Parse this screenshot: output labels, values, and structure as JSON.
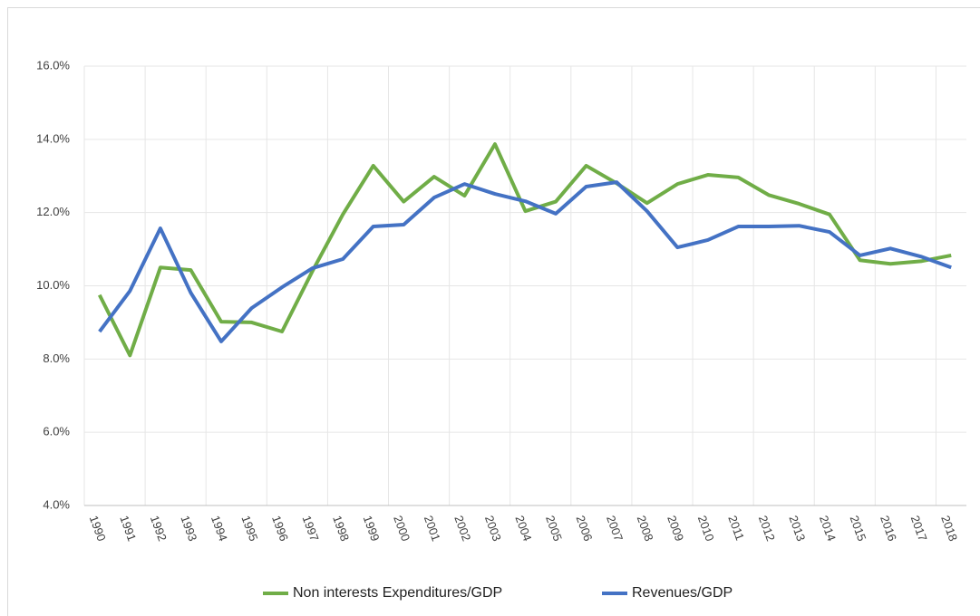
{
  "chart_data": {
    "type": "line",
    "categories": [
      "1990",
      "1991",
      "1992",
      "1993",
      "1994",
      "1995",
      "1996",
      "1997",
      "1998",
      "1999",
      "2000",
      "2001",
      "2002",
      "2003",
      "2004",
      "2005",
      "2006",
      "2007",
      "2008",
      "2009",
      "2010",
      "2011",
      "2012",
      "2013",
      "2014",
      "2015",
      "2016",
      "2017",
      "2018"
    ],
    "series": [
      {
        "name": "Non interests Expenditures/GDP",
        "color": "#70ad47",
        "values": [
          9.75,
          8.1,
          10.5,
          10.43,
          9.02,
          9.0,
          8.75,
          10.4,
          11.95,
          13.28,
          12.3,
          12.98,
          12.46,
          13.87,
          12.04,
          12.3,
          13.28,
          12.8,
          12.26,
          12.78,
          13.03,
          12.96,
          12.48,
          12.24,
          11.95,
          10.7,
          10.6,
          10.67,
          10.83
        ]
      },
      {
        "name": "Revenues/GDP",
        "color": "#4472c4",
        "values": [
          8.75,
          9.86,
          11.57,
          9.81,
          8.48,
          9.39,
          9.96,
          10.48,
          10.73,
          11.62,
          11.67,
          12.41,
          12.78,
          12.51,
          12.31,
          11.97,
          12.71,
          12.83,
          12.04,
          11.05,
          11.25,
          11.62,
          11.62,
          11.64,
          11.47,
          10.83,
          11.02,
          10.8,
          10.5
        ]
      }
    ],
    "ylim": [
      4,
      16
    ],
    "yticks": [
      {
        "value": 4,
        "label": "4.0%"
      },
      {
        "value": 6,
        "label": "6.0%"
      },
      {
        "value": 8,
        "label": "8.0%"
      },
      {
        "value": 10,
        "label": "10.0%"
      },
      {
        "value": 12,
        "label": "12.0%"
      },
      {
        "value": 14,
        "label": "14.0%"
      },
      {
        "value": 16,
        "label": "16.0%"
      }
    ],
    "grid": true,
    "legend": "bottom"
  }
}
